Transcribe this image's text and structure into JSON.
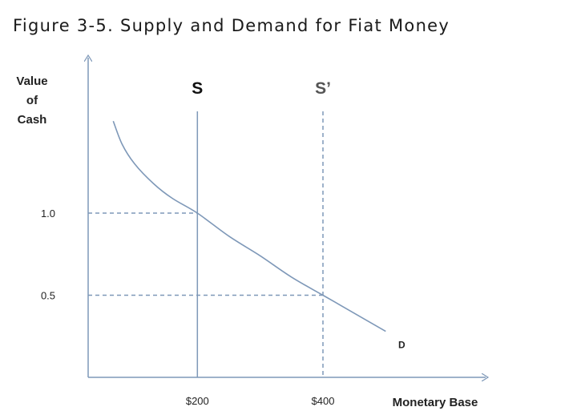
{
  "title": "Figure 3-5. Supply and Demand for Fiat Money",
  "chart_data": {
    "type": "line",
    "title": "Figure 3-5. Supply and Demand for Fiat Money",
    "xlabel": "Monetary Base",
    "ylabel_lines": [
      "Value",
      "of",
      "Cash"
    ],
    "x_ticks": [
      {
        "value": 200,
        "label": "$200"
      },
      {
        "value": 400,
        "label": "$400"
      }
    ],
    "y_ticks": [
      {
        "value": 1.0,
        "label": "1.0"
      },
      {
        "value": 0.5,
        "label": "0.5"
      }
    ],
    "xlim": [
      26,
      500
    ],
    "ylim": [
      0,
      1.98
    ],
    "demand": {
      "name": "D",
      "x": [
        66,
        80,
        100,
        130,
        160,
        200,
        250,
        300,
        350,
        400,
        450,
        500
      ],
      "y": [
        1.56,
        1.42,
        1.3,
        1.18,
        1.09,
        1.0,
        0.86,
        0.74,
        0.61,
        0.5,
        0.39,
        0.28
      ]
    },
    "supply_lines": [
      {
        "name": "S",
        "x": 200,
        "style": "solid"
      },
      {
        "name": "S’",
        "x": 400,
        "style": "dashed"
      }
    ],
    "reference_lines": [
      {
        "y": 1.0,
        "x_to": 200,
        "style": "dashed"
      },
      {
        "y": 0.5,
        "x_to": 400,
        "style": "dashed"
      }
    ],
    "grid": false,
    "colors": {
      "curve": "#7e98b8",
      "axis": "#7e98b8",
      "dashed": "#7e98b8"
    }
  }
}
